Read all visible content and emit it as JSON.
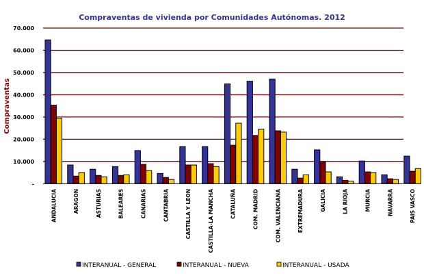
{
  "chart_data": {
    "type": "bar",
    "title": "Compraventas de vivienda por Comunidades Autónomas. 2012",
    "xlabel": "",
    "ylabel": "Compraventas",
    "ylim": [
      0,
      70000
    ],
    "yticks": [
      0,
      10000,
      20000,
      30000,
      40000,
      50000,
      60000,
      70000
    ],
    "ytick_labels": [
      "-",
      "10.000",
      "20.000",
      "30.000",
      "40.000",
      "50.000",
      "60.000",
      "70.000"
    ],
    "grid": true,
    "legend_position": "bottom",
    "categories": [
      "ANDALUCIA",
      "ARAGON",
      "ASTURIAS",
      "BALEARES",
      "CANARIAS",
      "CANTABRIA",
      "CASTILLA Y LEON",
      "CASTILLA-LA MANCHA",
      "CATALUÑA",
      "COM. MADRID",
      "COM. VALENCIANA",
      "EXTREMADURA",
      "GALICIA",
      "LA RIOJA",
      "MURCIA",
      "NAVARRA",
      "PAIS VASCO"
    ],
    "series": [
      {
        "name": "INTERANUAL - GENERAL",
        "color": "#333399",
        "values": [
          64700,
          8400,
          6500,
          7700,
          14900,
          4600,
          16700,
          16700,
          44900,
          46100,
          47100,
          6500,
          15200,
          3100,
          10200,
          4000,
          12400
        ]
      },
      {
        "name": "INTERANUAL - NUEVA",
        "color": "#800000",
        "values": [
          35300,
          3400,
          3700,
          3700,
          8700,
          2800,
          8400,
          9000,
          17300,
          21700,
          23800,
          2500,
          9900,
          1500,
          5300,
          2200,
          5600
        ]
      },
      {
        "name": "INTERANUAL - USADA",
        "color": "#FFCC00",
        "values": [
          29400,
          5000,
          3100,
          4000,
          5900,
          1900,
          8400,
          7700,
          27200,
          24500,
          23200,
          4000,
          5300,
          1200,
          5000,
          1900,
          6800
        ]
      }
    ],
    "gridline_color": "#800000"
  }
}
